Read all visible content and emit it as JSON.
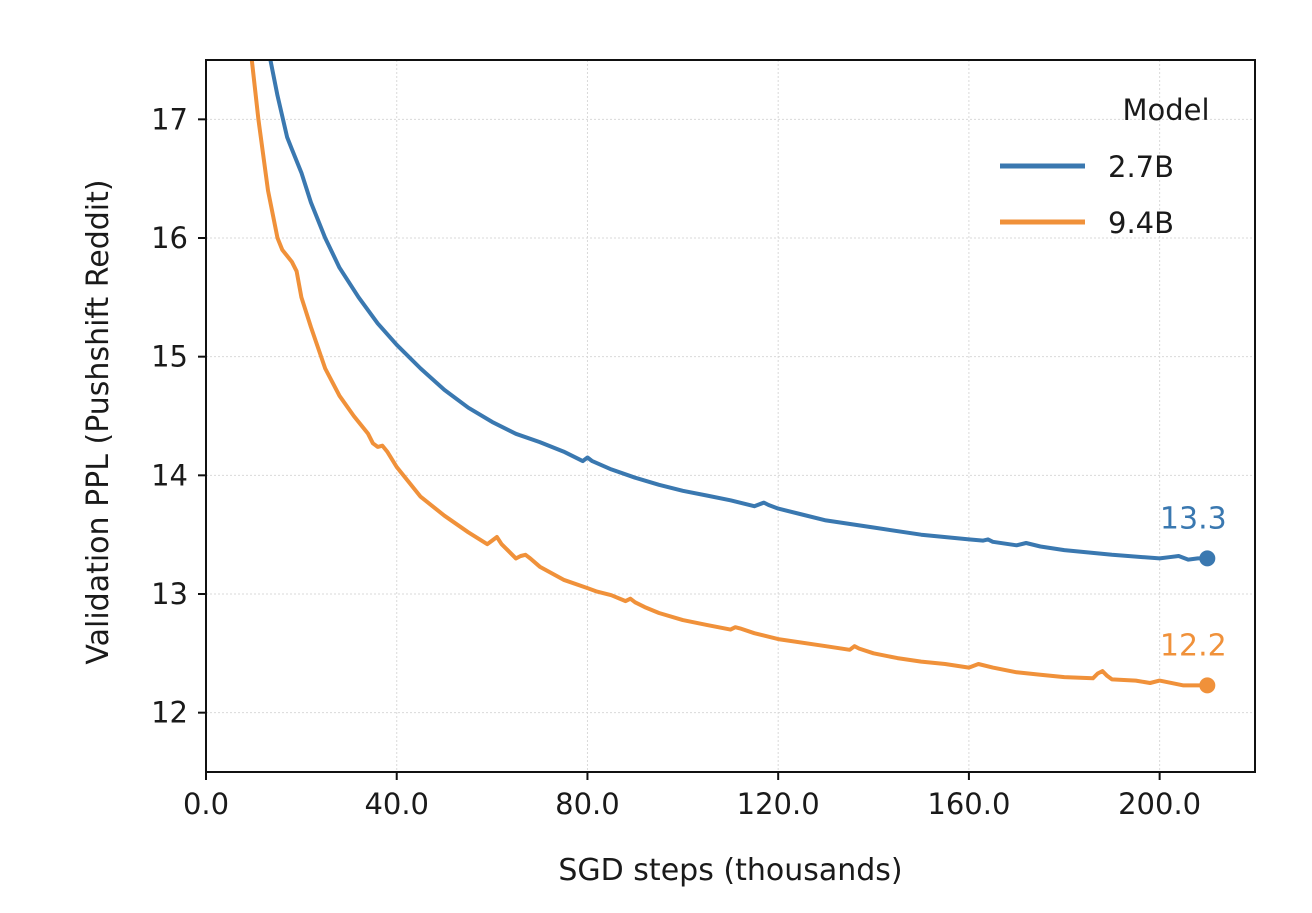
{
  "chart_data": {
    "type": "line",
    "xlabel": "SGD steps (thousands)",
    "ylabel": "Validation PPL (Pushshift Reddit)",
    "xlim": [
      0,
      220
    ],
    "ylim": [
      11.5,
      17.5
    ],
    "xticks": [
      0,
      40,
      80,
      120,
      160,
      200
    ],
    "xtick_labels": [
      "0.0",
      "40.0",
      "80.0",
      "120.0",
      "160.0",
      "200.0"
    ],
    "yticks": [
      12,
      13,
      14,
      15,
      16,
      17
    ],
    "ytick_labels": [
      "12",
      "13",
      "14",
      "15",
      "16",
      "17"
    ],
    "grid": true,
    "legend": {
      "title": "Model",
      "position": "top-right"
    },
    "series": [
      {
        "name": "2.7B",
        "color": "#3a78b0",
        "end_label": "13.3",
        "x": [
          13.5,
          15,
          17,
          18,
          20,
          22,
          25,
          28,
          32,
          36,
          40,
          45,
          50,
          55,
          60,
          65,
          70,
          75,
          79,
          80,
          81,
          85,
          90,
          95,
          100,
          105,
          110,
          115,
          117,
          118,
          120,
          125,
          130,
          140,
          150,
          160,
          163,
          164,
          165,
          170,
          172,
          175,
          180,
          190,
          200,
          202,
          204,
          206,
          208,
          210
        ],
        "y": [
          17.5,
          17.2,
          16.85,
          16.75,
          16.55,
          16.3,
          16.0,
          15.75,
          15.5,
          15.28,
          15.1,
          14.9,
          14.72,
          14.57,
          14.45,
          14.35,
          14.28,
          14.2,
          14.12,
          14.15,
          14.12,
          14.05,
          13.98,
          13.92,
          13.87,
          13.83,
          13.79,
          13.74,
          13.77,
          13.75,
          13.72,
          13.67,
          13.62,
          13.56,
          13.5,
          13.46,
          13.45,
          13.46,
          13.44,
          13.41,
          13.43,
          13.4,
          13.37,
          13.33,
          13.3,
          13.31,
          13.32,
          13.29,
          13.3,
          13.3
        ]
      },
      {
        "name": "9.4B",
        "color": "#f0913a",
        "end_label": "12.2",
        "x": [
          9.6,
          11,
          13,
          15,
          16,
          18,
          19,
          20,
          22,
          25,
          28,
          31,
          34,
          35,
          36,
          37,
          38,
          40,
          45,
          50,
          55,
          59,
          60,
          61,
          62,
          63,
          65,
          66,
          67,
          68,
          70,
          75,
          80,
          82,
          85,
          88,
          89,
          90,
          92,
          95,
          100,
          105,
          110,
          111,
          112,
          115,
          120,
          130,
          135,
          136,
          137,
          140,
          145,
          150,
          155,
          160,
          162,
          165,
          170,
          175,
          180,
          186,
          187,
          188,
          189,
          190,
          195,
          198,
          200,
          205,
          210
        ],
        "y": [
          17.5,
          17.0,
          16.4,
          16.0,
          15.9,
          15.8,
          15.72,
          15.5,
          15.25,
          14.9,
          14.67,
          14.5,
          14.35,
          14.27,
          14.24,
          14.25,
          14.2,
          14.07,
          13.82,
          13.66,
          13.52,
          13.42,
          13.45,
          13.48,
          13.42,
          13.38,
          13.3,
          13.32,
          13.33,
          13.3,
          13.23,
          13.12,
          13.05,
          13.02,
          12.99,
          12.94,
          12.96,
          12.93,
          12.89,
          12.84,
          12.78,
          12.74,
          12.7,
          12.72,
          12.71,
          12.67,
          12.62,
          12.56,
          12.53,
          12.56,
          12.54,
          12.5,
          12.46,
          12.43,
          12.41,
          12.38,
          12.41,
          12.38,
          12.34,
          12.32,
          12.3,
          12.29,
          12.33,
          12.35,
          12.31,
          12.28,
          12.27,
          12.25,
          12.27,
          12.23,
          12.23
        ]
      }
    ]
  }
}
